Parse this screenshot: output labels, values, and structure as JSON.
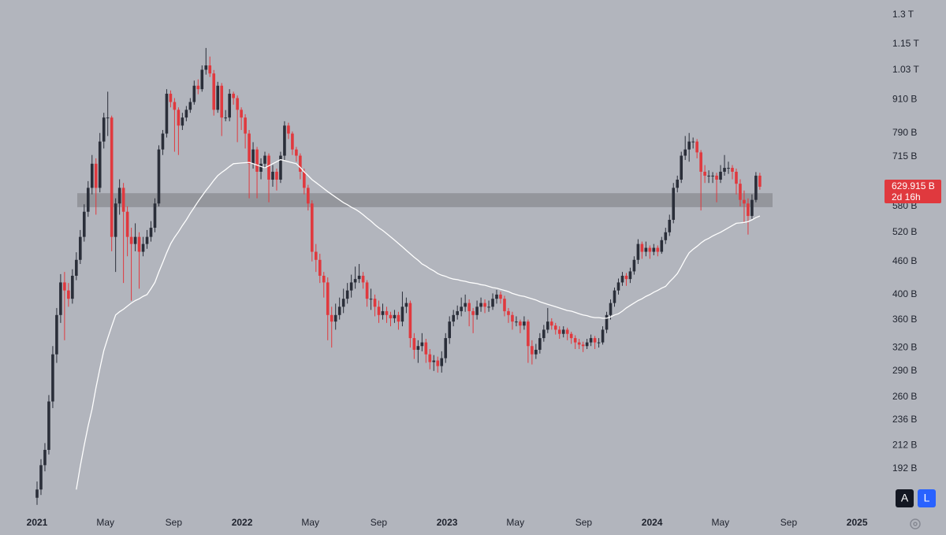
{
  "chart_data": {
    "type": "candlestick",
    "log_scale": true,
    "grid": false,
    "ylim": [
      160,
      1383
    ],
    "yticks": [
      {
        "value": 1300,
        "label": "1.3 T"
      },
      {
        "value": 1150,
        "label": "1.15 T"
      },
      {
        "value": 1030,
        "label": "1.03 T"
      },
      {
        "value": 910,
        "label": "910 B"
      },
      {
        "value": 790,
        "label": "790 B"
      },
      {
        "value": 715,
        "label": "715 B"
      },
      {
        "value": 580,
        "label": "580 B"
      },
      {
        "value": 520,
        "label": "520 B"
      },
      {
        "value": 460,
        "label": "460 B"
      },
      {
        "value": 400,
        "label": "400 B"
      },
      {
        "value": 360,
        "label": "360 B"
      },
      {
        "value": 320,
        "label": "320 B"
      },
      {
        "value": 290,
        "label": "290 B"
      },
      {
        "value": 260,
        "label": "260 B"
      },
      {
        "value": 236,
        "label": "236 B"
      },
      {
        "value": 212,
        "label": "212 B"
      },
      {
        "value": 192,
        "label": "192 B"
      }
    ],
    "xticks": [
      {
        "value": "2021-01",
        "label": "2021"
      },
      {
        "value": "2021-05",
        "label": "May"
      },
      {
        "value": "2021-09",
        "label": "Sep"
      },
      {
        "value": "2022-01",
        "label": "2022"
      },
      {
        "value": "2022-05",
        "label": "May"
      },
      {
        "value": "2022-09",
        "label": "Sep"
      },
      {
        "value": "2023-01",
        "label": "2023"
      },
      {
        "value": "2023-05",
        "label": "May"
      },
      {
        "value": "2023-09",
        "label": "Sep"
      },
      {
        "value": "2024-01",
        "label": "2024"
      },
      {
        "value": "2024-05",
        "label": "May"
      },
      {
        "value": "2024-09",
        "label": "Sep"
      },
      {
        "value": "2025-01",
        "label": "2025"
      }
    ],
    "up_color": "#2a2e39",
    "down_color": "#e0393e",
    "candles": [
      [
        170,
        182,
        165,
        176
      ],
      [
        176,
        200,
        172,
        195
      ],
      [
        195,
        214,
        190,
        208
      ],
      [
        208,
        262,
        204,
        255
      ],
      [
        255,
        322,
        248,
        311
      ],
      [
        311,
        378,
        300,
        367
      ],
      [
        367,
        436,
        355,
        421
      ],
      [
        421,
        440,
        330,
        407
      ],
      [
        407,
        420,
        380,
        393
      ],
      [
        393,
        445,
        385,
        433
      ],
      [
        433,
        478,
        425,
        463
      ],
      [
        463,
        525,
        455,
        510
      ],
      [
        510,
        585,
        500,
        567
      ],
      [
        567,
        645,
        555,
        627
      ],
      [
        627,
        720,
        610,
        694
      ],
      [
        694,
        710,
        560,
        627
      ],
      [
        627,
        790,
        615,
        762
      ],
      [
        762,
        860,
        740,
        843
      ],
      [
        843,
        940,
        780,
        843
      ],
      [
        843,
        850,
        480,
        510
      ],
      [
        510,
        600,
        440,
        587
      ],
      [
        587,
        650,
        560,
        627
      ],
      [
        627,
        640,
        420,
        567
      ],
      [
        567,
        580,
        470,
        510
      ],
      [
        510,
        530,
        390,
        495
      ],
      [
        495,
        540,
        480,
        510
      ],
      [
        510,
        520,
        410,
        479
      ],
      [
        479,
        510,
        470,
        495
      ],
      [
        495,
        525,
        485,
        510
      ],
      [
        510,
        545,
        500,
        530
      ],
      [
        530,
        600,
        520,
        587
      ],
      [
        587,
        750,
        580,
        737
      ],
      [
        737,
        800,
        720,
        788
      ],
      [
        788,
        950,
        775,
        932
      ],
      [
        932,
        945,
        880,
        900
      ],
      [
        900,
        915,
        730,
        871
      ],
      [
        871,
        880,
        720,
        815
      ],
      [
        815,
        860,
        800,
        843
      ],
      [
        843,
        885,
        830,
        871
      ],
      [
        871,
        915,
        860,
        900
      ],
      [
        900,
        985,
        890,
        964
      ],
      [
        964,
        990,
        930,
        950
      ],
      [
        950,
        1050,
        940,
        1031
      ],
      [
        1031,
        1130,
        1010,
        1050
      ],
      [
        1050,
        1090,
        1000,
        1015
      ],
      [
        1015,
        1030,
        850,
        871
      ],
      [
        871,
        980,
        860,
        964
      ],
      [
        964,
        975,
        780,
        843
      ],
      [
        843,
        870,
        830,
        843
      ],
      [
        843,
        950,
        830,
        932
      ],
      [
        932,
        940,
        890,
        915
      ],
      [
        915,
        925,
        760,
        871
      ],
      [
        871,
        880,
        800,
        843
      ],
      [
        843,
        855,
        740,
        788
      ],
      [
        788,
        800,
        600,
        694
      ],
      [
        694,
        760,
        680,
        737
      ],
      [
        737,
        745,
        600,
        671
      ],
      [
        671,
        710,
        650,
        694
      ],
      [
        694,
        730,
        680,
        718
      ],
      [
        718,
        725,
        590,
        649
      ],
      [
        649,
        690,
        630,
        671
      ],
      [
        671,
        680,
        620,
        649
      ],
      [
        649,
        730,
        640,
        718
      ],
      [
        718,
        830,
        705,
        815
      ],
      [
        815,
        825,
        770,
        788
      ],
      [
        788,
        795,
        720,
        737
      ],
      [
        737,
        745,
        700,
        718
      ],
      [
        718,
        725,
        650,
        671
      ],
      [
        671,
        680,
        610,
        627
      ],
      [
        627,
        635,
        570,
        587
      ],
      [
        587,
        595,
        460,
        479
      ],
      [
        479,
        495,
        440,
        463
      ],
      [
        463,
        475,
        420,
        433
      ],
      [
        433,
        440,
        395,
        421
      ],
      [
        421,
        430,
        330,
        367
      ],
      [
        367,
        380,
        320,
        357
      ],
      [
        357,
        385,
        345,
        367
      ],
      [
        367,
        395,
        360,
        380
      ],
      [
        380,
        410,
        370,
        393
      ],
      [
        393,
        420,
        385,
        407
      ],
      [
        407,
        435,
        395,
        421
      ],
      [
        421,
        450,
        410,
        427
      ],
      [
        427,
        455,
        420,
        433
      ],
      [
        433,
        440,
        410,
        421
      ],
      [
        421,
        425,
        380,
        393
      ],
      [
        393,
        410,
        375,
        393
      ],
      [
        393,
        400,
        365,
        380
      ],
      [
        380,
        390,
        355,
        367
      ],
      [
        367,
        385,
        360,
        373
      ],
      [
        373,
        380,
        355,
        367
      ],
      [
        367,
        372,
        350,
        362
      ],
      [
        362,
        375,
        355,
        367
      ],
      [
        367,
        372,
        345,
        357
      ],
      [
        357,
        405,
        350,
        380
      ],
      [
        380,
        395,
        370,
        386
      ],
      [
        386,
        390,
        320,
        333
      ],
      [
        333,
        340,
        305,
        317
      ],
      [
        317,
        330,
        300,
        322
      ],
      [
        322,
        340,
        315,
        327
      ],
      [
        327,
        332,
        300,
        311
      ],
      [
        311,
        318,
        292,
        301
      ],
      [
        301,
        310,
        290,
        303
      ],
      [
        303,
        308,
        288,
        296
      ],
      [
        296,
        315,
        288,
        306
      ],
      [
        306,
        340,
        300,
        333
      ],
      [
        333,
        365,
        325,
        357
      ],
      [
        357,
        375,
        350,
        367
      ],
      [
        367,
        382,
        360,
        373
      ],
      [
        373,
        395,
        365,
        380
      ],
      [
        380,
        400,
        372,
        386
      ],
      [
        386,
        392,
        350,
        373
      ],
      [
        373,
        378,
        340,
        367
      ],
      [
        367,
        390,
        360,
        380
      ],
      [
        380,
        395,
        372,
        386
      ],
      [
        386,
        392,
        370,
        380
      ],
      [
        380,
        390,
        372,
        380
      ],
      [
        380,
        402,
        375,
        393
      ],
      [
        393,
        408,
        385,
        400
      ],
      [
        400,
        405,
        385,
        393
      ],
      [
        393,
        398,
        365,
        373
      ],
      [
        373,
        378,
        355,
        367
      ],
      [
        367,
        372,
        345,
        357
      ],
      [
        357,
        365,
        350,
        357
      ],
      [
        357,
        360,
        340,
        351
      ],
      [
        351,
        365,
        345,
        357
      ],
      [
        357,
        360,
        300,
        322
      ],
      [
        322,
        330,
        298,
        311
      ],
      [
        311,
        325,
        305,
        317
      ],
      [
        317,
        340,
        312,
        333
      ],
      [
        333,
        352,
        328,
        345
      ],
      [
        345,
        378,
        340,
        357
      ],
      [
        357,
        362,
        345,
        351
      ],
      [
        351,
        355,
        338,
        345
      ],
      [
        345,
        350,
        332,
        339
      ],
      [
        339,
        350,
        334,
        345
      ],
      [
        345,
        348,
        330,
        339
      ],
      [
        339,
        342,
        325,
        333
      ],
      [
        333,
        337,
        318,
        327
      ],
      [
        327,
        332,
        318,
        324
      ],
      [
        324,
        328,
        314,
        322
      ],
      [
        322,
        332,
        318,
        327
      ],
      [
        327,
        338,
        322,
        333
      ],
      [
        333,
        336,
        318,
        327
      ],
      [
        327,
        333,
        320,
        327
      ],
      [
        327,
        350,
        324,
        345
      ],
      [
        345,
        372,
        340,
        367
      ],
      [
        367,
        392,
        360,
        386
      ],
      [
        386,
        412,
        380,
        407
      ],
      [
        407,
        428,
        400,
        421
      ],
      [
        421,
        440,
        415,
        433
      ],
      [
        433,
        438,
        415,
        427
      ],
      [
        427,
        448,
        420,
        441
      ],
      [
        441,
        470,
        435,
        463
      ],
      [
        463,
        505,
        455,
        495
      ],
      [
        495,
        500,
        465,
        479
      ],
      [
        479,
        500,
        470,
        487
      ],
      [
        487,
        492,
        465,
        479
      ],
      [
        479,
        495,
        472,
        487
      ],
      [
        487,
        492,
        470,
        479
      ],
      [
        479,
        510,
        475,
        503
      ],
      [
        503,
        530,
        495,
        520
      ],
      [
        520,
        560,
        512,
        548
      ],
      [
        548,
        640,
        540,
        627
      ],
      [
        627,
        660,
        615,
        649
      ],
      [
        649,
        730,
        640,
        718
      ],
      [
        718,
        780,
        705,
        737
      ],
      [
        737,
        790,
        700,
        762
      ],
      [
        762,
        775,
        740,
        762
      ],
      [
        762,
        770,
        710,
        728
      ],
      [
        728,
        735,
        570,
        671
      ],
      [
        671,
        690,
        640,
        660
      ],
      [
        660,
        675,
        640,
        660
      ],
      [
        660,
        670,
        640,
        660
      ],
      [
        660,
        668,
        590,
        649
      ],
      [
        649,
        690,
        640,
        671
      ],
      [
        671,
        720,
        660,
        682
      ],
      [
        682,
        700,
        665,
        682
      ],
      [
        682,
        690,
        650,
        671
      ],
      [
        671,
        680,
        610,
        638
      ],
      [
        638,
        650,
        580,
        596
      ],
      [
        596,
        620,
        540,
        587
      ],
      [
        587,
        600,
        515,
        557
      ],
      [
        557,
        610,
        550,
        596
      ],
      [
        596,
        670,
        590,
        660
      ],
      [
        660,
        668,
        622,
        629.915
      ]
    ],
    "ma": {
      "color": "#ffffff",
      "values": [
        null,
        null,
        null,
        null,
        null,
        null,
        null,
        null,
        null,
        null,
        176,
        194,
        212,
        230,
        247,
        270,
        293,
        316,
        333,
        350,
        367,
        372,
        376,
        381,
        386,
        390,
        393,
        397,
        400,
        410,
        421,
        440,
        458,
        477,
        495,
        509,
        521,
        535,
        548,
        563,
        577,
        592,
        606,
        620,
        633,
        647,
        660,
        669,
        677,
        686,
        694,
        695,
        696,
        697,
        698,
        694,
        690,
        686,
        682,
        688,
        694,
        700,
        706,
        703,
        700,
        697,
        694,
        683,
        671,
        660,
        649,
        641,
        633,
        625,
        617,
        610,
        603,
        596,
        589,
        584,
        578,
        573,
        567,
        560,
        552,
        545,
        537,
        530,
        524,
        517,
        510,
        503,
        496,
        489,
        482,
        475,
        468,
        462,
        455,
        451,
        446,
        442,
        437,
        434,
        432,
        429,
        427,
        426,
        424,
        423,
        421,
        420,
        419,
        417,
        416,
        414,
        412,
        411,
        409,
        407,
        405,
        402,
        400,
        398,
        397,
        395,
        393,
        391,
        388,
        386,
        384,
        382,
        380,
        378,
        376,
        374,
        373,
        371,
        369,
        367,
        366,
        364,
        363,
        363,
        362,
        362,
        364,
        367,
        369,
        373,
        378,
        382,
        386,
        390,
        393,
        397,
        400,
        404,
        407,
        411,
        414,
        422,
        429,
        437,
        450,
        464,
        477,
        484,
        490,
        497,
        503,
        507,
        512,
        516,
        520,
        525,
        530,
        535,
        540,
        541,
        542,
        544,
        548,
        553,
        557
      ]
    },
    "zone": {
      "low": 578,
      "high": 613,
      "color": "#8e9096"
    },
    "last_price": {
      "value": 629.915,
      "label": "629.915 B"
    },
    "countdown": "2d 16h",
    "buttons": [
      "A",
      "L"
    ]
  }
}
